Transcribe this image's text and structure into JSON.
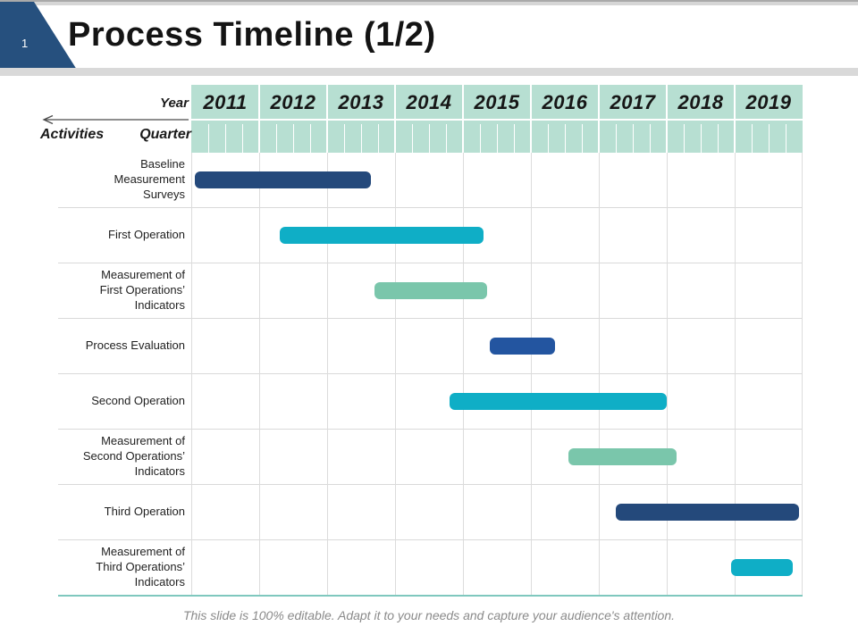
{
  "slide": {
    "number": "1",
    "title": "Process Timeline (1/2)",
    "caption": "This slide is 100% editable. Adapt it to your needs and capture your audience's attention."
  },
  "axis": {
    "year_label": "Year",
    "activities_label": "Activities",
    "quarter_label": "Quarter"
  },
  "colors": {
    "header_bg": "#b7dfd2",
    "corner_flag": "#26507e",
    "navy": "#24497b",
    "medium_blue": "#2355a0",
    "cyan": "#0faec6",
    "green": "#7ac6ab",
    "table_bottom_border": "#7fc8be"
  },
  "chart_data": {
    "type": "gantt",
    "title": "Process Timeline (1/2)",
    "x_axis": {
      "years": [
        "2011",
        "2012",
        "2013",
        "2014",
        "2015",
        "2016",
        "2017",
        "2018",
        "2019"
      ],
      "quarters_per_year": 4,
      "range": [
        2011,
        2020
      ],
      "grid": true
    },
    "rows": [
      {
        "activity": "Baseline Measurement Surveys",
        "start": 2011.05,
        "end": 2013.65,
        "color": "navy"
      },
      {
        "activity": "First Operation",
        "start": 2012.3,
        "end": 2015.3,
        "color": "cyan"
      },
      {
        "activity": "Measurement of First Operations’ Indicators",
        "start": 2013.7,
        "end": 2015.35,
        "color": "green"
      },
      {
        "activity": "Process Evaluation",
        "start": 2015.4,
        "end": 2016.35,
        "color": "medium_blue"
      },
      {
        "activity": "Second Operation",
        "start": 2014.8,
        "end": 2018.0,
        "color": "cyan"
      },
      {
        "activity": "Measurement of Second Operations’ Indicators",
        "start": 2016.55,
        "end": 2018.15,
        "color": "green"
      },
      {
        "activity": "Third Operation",
        "start": 2017.25,
        "end": 2019.95,
        "color": "navy"
      },
      {
        "activity": "Measurement of Third Operations’ Indicators",
        "start": 2018.95,
        "end": 2019.85,
        "color": "cyan"
      }
    ]
  }
}
